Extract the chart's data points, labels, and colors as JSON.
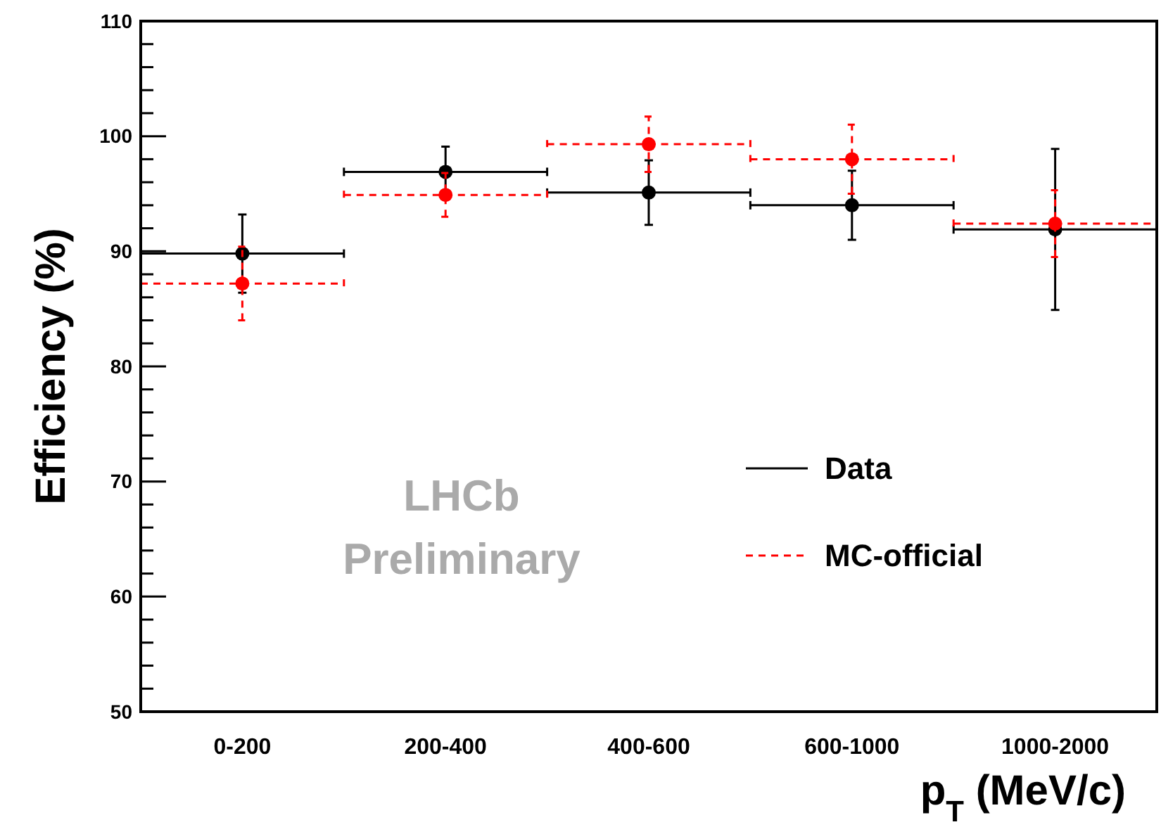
{
  "chart_data": {
    "type": "scatter",
    "xlabel": "p$_{T}$ (MeV/c)",
    "ylabel": "Efficiency (%)",
    "categories": [
      "0-200",
      "200-400",
      "400-600",
      "600-1000",
      "1000-2000"
    ],
    "ylim": [
      50,
      110
    ],
    "yticks": [
      50,
      {
        "value": 52,
        "label": null
      },
      {
        "value": 54,
        "label": null
      },
      {
        "value": 56,
        "label": null
      },
      {
        "value": 58,
        "label": null
      },
      60,
      {
        "value": 62,
        "label": null
      },
      {
        "value": 64,
        "label": null
      },
      {
        "value": 66,
        "label": null
      },
      {
        "value": 68,
        "label": null
      },
      70,
      {
        "value": 72,
        "label": null
      },
      {
        "value": 74,
        "label": null
      },
      {
        "value": 76,
        "label": null
      },
      {
        "value": 78,
        "label": null
      },
      80,
      {
        "value": 82,
        "label": null
      },
      {
        "value": 84,
        "label": null
      },
      {
        "value": 86,
        "label": null
      },
      {
        "value": 88,
        "label": null
      },
      90,
      {
        "value": 92,
        "label": null
      },
      {
        "value": 94,
        "label": null
      },
      {
        "value": 96,
        "label": null
      },
      {
        "value": 98,
        "label": null
      },
      100,
      {
        "value": 102,
        "label": null
      },
      {
        "value": 104,
        "label": null
      },
      {
        "value": 106,
        "label": null
      },
      {
        "value": 108,
        "label": null
      },
      110
    ],
    "grid": false,
    "legend": "bottom right",
    "marker": "circle",
    "series": [
      {
        "name": "Data",
        "color": "#000000",
        "line_style": "solid",
        "values": [
          89.8,
          96.9,
          95.1,
          94.0,
          91.9
        ],
        "errors": [
          3.4,
          2.2,
          2.8,
          3.0,
          7.0
        ]
      },
      {
        "name": "MC-official",
        "color": "#ff0000",
        "line_style": "dashed",
        "values": [
          87.2,
          94.9,
          99.3,
          98.0,
          92.4
        ],
        "errors": [
          3.2,
          1.9,
          2.4,
          3.0,
          2.9
        ]
      }
    ],
    "annotations": [
      "LHCb Preliminary"
    ]
  }
}
